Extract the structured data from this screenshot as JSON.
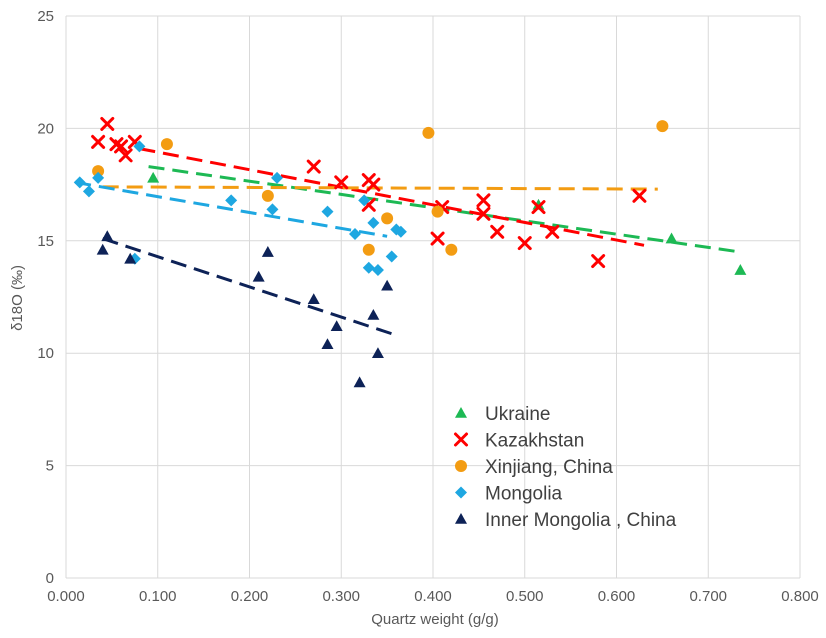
{
  "chart_data": {
    "type": "scatter",
    "title": "",
    "xlabel": "Quartz weight (g/g)",
    "ylabel": "δ18O (‰)",
    "xlim": [
      0,
      0.8
    ],
    "ylim": [
      0,
      25
    ],
    "x_ticks": [
      "0.000",
      "0.100",
      "0.200",
      "0.300",
      "0.400",
      "0.500",
      "0.600",
      "0.700",
      "0.800"
    ],
    "y_ticks": [
      "0",
      "5",
      "10",
      "15",
      "20",
      "25"
    ],
    "grid": true,
    "legend_position": "bottom-right",
    "series": [
      {
        "name": "Ukraine",
        "marker": "triangle",
        "color": "#1db954",
        "points": [
          [
            0.095,
            17.8
          ],
          [
            0.515,
            16.6
          ],
          [
            0.66,
            15.1
          ],
          [
            0.735,
            13.7
          ]
        ],
        "trend": [
          [
            0.09,
            18.3
          ],
          [
            0.735,
            14.5
          ]
        ]
      },
      {
        "name": "Kazakhstan",
        "marker": "x",
        "color": "#ff0000",
        "points": [
          [
            0.035,
            19.4
          ],
          [
            0.045,
            20.2
          ],
          [
            0.055,
            19.3
          ],
          [
            0.06,
            19.2
          ],
          [
            0.065,
            18.8
          ],
          [
            0.075,
            19.4
          ],
          [
            0.27,
            18.3
          ],
          [
            0.3,
            17.6
          ],
          [
            0.33,
            17.7
          ],
          [
            0.33,
            16.6
          ],
          [
            0.335,
            17.5
          ],
          [
            0.405,
            15.1
          ],
          [
            0.41,
            16.5
          ],
          [
            0.455,
            16.2
          ],
          [
            0.455,
            16.8
          ],
          [
            0.47,
            15.4
          ],
          [
            0.5,
            14.9
          ],
          [
            0.515,
            16.5
          ],
          [
            0.53,
            15.4
          ],
          [
            0.58,
            14.1
          ],
          [
            0.625,
            17.0
          ]
        ],
        "trend": [
          [
            0.08,
            19.1
          ],
          [
            0.63,
            14.8
          ]
        ]
      },
      {
        "name": "Xinjiang, China",
        "marker": "circle",
        "color": "#f39c12",
        "points": [
          [
            0.035,
            18.1
          ],
          [
            0.11,
            19.3
          ],
          [
            0.22,
            17.0
          ],
          [
            0.33,
            14.6
          ],
          [
            0.35,
            16.0
          ],
          [
            0.395,
            19.8
          ],
          [
            0.405,
            16.3
          ],
          [
            0.42,
            14.6
          ],
          [
            0.65,
            20.1
          ]
        ],
        "trend": [
          [
            0.04,
            17.4
          ],
          [
            0.645,
            17.3
          ]
        ]
      },
      {
        "name": "Mongolia",
        "marker": "diamond",
        "color": "#1ea7e1",
        "points": [
          [
            0.015,
            17.6
          ],
          [
            0.025,
            17.2
          ],
          [
            0.035,
            17.8
          ],
          [
            0.075,
            14.2
          ],
          [
            0.08,
            19.2
          ],
          [
            0.18,
            16.8
          ],
          [
            0.225,
            16.4
          ],
          [
            0.23,
            17.8
          ],
          [
            0.285,
            16.3
          ],
          [
            0.315,
            15.3
          ],
          [
            0.325,
            16.8
          ],
          [
            0.33,
            13.8
          ],
          [
            0.335,
            15.8
          ],
          [
            0.34,
            13.7
          ],
          [
            0.355,
            14.3
          ],
          [
            0.36,
            15.5
          ],
          [
            0.365,
            15.4
          ]
        ],
        "trend": [
          [
            0.01,
            17.6
          ],
          [
            0.35,
            15.2
          ]
        ]
      },
      {
        "name": "Inner Mongolia , China",
        "marker": "triangle",
        "color": "#0d2257",
        "points": [
          [
            0.04,
            14.6
          ],
          [
            0.045,
            15.2
          ],
          [
            0.07,
            14.2
          ],
          [
            0.21,
            13.4
          ],
          [
            0.22,
            14.5
          ],
          [
            0.27,
            12.4
          ],
          [
            0.285,
            10.4
          ],
          [
            0.295,
            11.2
          ],
          [
            0.32,
            8.7
          ],
          [
            0.335,
            11.7
          ],
          [
            0.34,
            10.0
          ],
          [
            0.35,
            13.0
          ]
        ],
        "trend": [
          [
            0.04,
            15.1
          ],
          [
            0.36,
            10.8
          ]
        ]
      }
    ]
  }
}
